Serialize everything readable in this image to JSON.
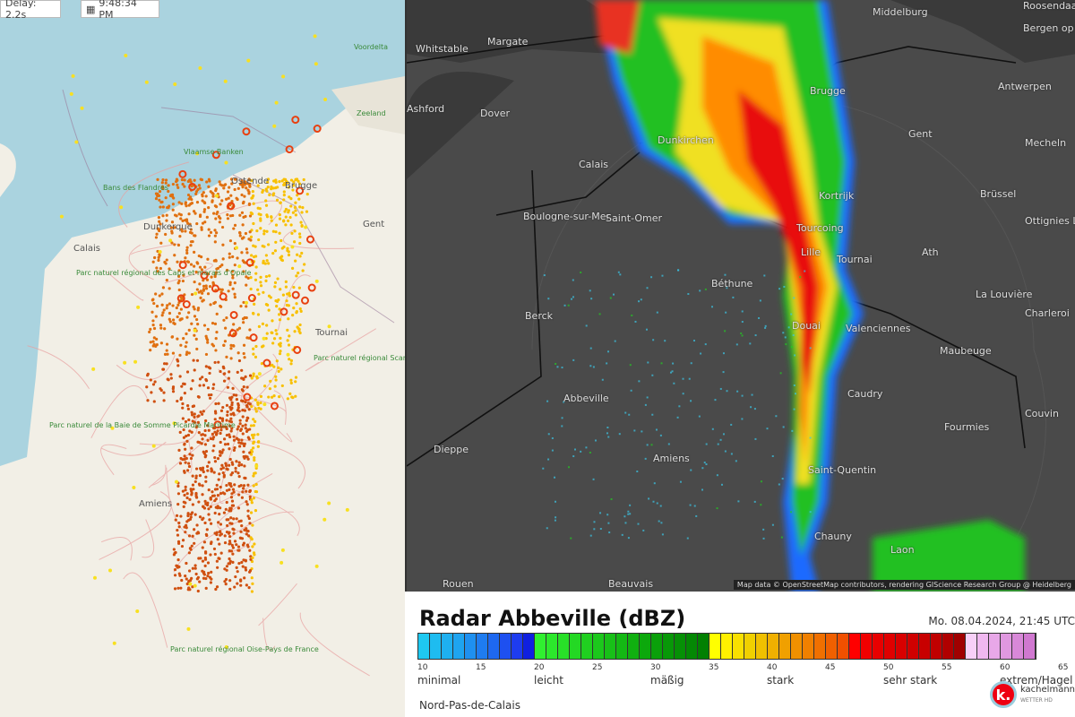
{
  "lightning_map": {
    "delay_label": "Delay: 2.2s",
    "time": "9:48:34 PM",
    "labels": [
      "Ostende",
      "Brugge",
      "Dunkerque",
      "Calais",
      "Gent",
      "Amiens",
      "Tournai"
    ],
    "park_labels": [
      "Voordelta",
      "Vlaamse Banken",
      "Bans des Flandres",
      "Parc naturel régional des Caps et marais d'Opale",
      "Parc naturel régional Scarpe-Escaut",
      "Parc naturel de la Baie de Somme Picardie Maritime",
      "Parc naturel régional Oise-Pays de France",
      "Zeeland"
    ]
  },
  "radar_map": {
    "cities": [
      "Whitstable",
      "Margate",
      "Dover",
      "Ashford",
      "Calais",
      "Dunkirchen",
      "Brugge",
      "Middelburg",
      "Bergen op Zoom",
      "Roosendaal",
      "Antwerpen",
      "Gent",
      "Mecheln",
      "Kortrijk",
      "Brüssel",
      "Ottignies Louvain-la-Neuve",
      "Tourcoing",
      "Lille",
      "Tournai",
      "Ath",
      "Boulogne-sur-Mer",
      "Saint-Omer",
      "Béthune",
      "La Louvière",
      "Charleroi",
      "Berck",
      "Douai",
      "Valenciennes",
      "Maubeuge",
      "Abbeville",
      "Caudry",
      "Fourmies",
      "Couvin",
      "Amiens",
      "Dieppe",
      "Saint-Quentin",
      "Chauny",
      "Laon",
      "Rouen",
      "Beauvais"
    ],
    "attribution": "Map data © OpenStreetMap contributors, rendering GIScience Research Group @ Heidelberg"
  },
  "legend": {
    "title": "Radar Abbeville (dBZ)",
    "date": "Mo. 08.04.2024, 21:45 UTC",
    "ticks": [
      "10",
      "15",
      "20",
      "25",
      "30",
      "35",
      "40",
      "45",
      "50",
      "55",
      "60",
      "65"
    ],
    "categories": [
      "minimal",
      "leicht",
      "mäßig",
      "stark",
      "sehr stark",
      "extrem/Hagel"
    ],
    "region": "Nord-Pas-de-Calais",
    "brand": "kachelmann",
    "brand_sub": "WETTER HD",
    "colors": {
      "minimal": "#1ec8f0",
      "leicht": "#22e022",
      "stark": "#ffff00",
      "sehr_stark": "#ff0000",
      "extrem": "#f0b0f0"
    }
  }
}
